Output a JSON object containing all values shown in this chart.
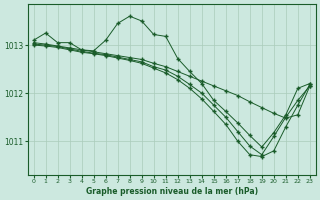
{
  "background_color": "#cce8df",
  "grid_color": "#aaccbb",
  "line_color": "#1a5c2a",
  "marker": "+",
  "xlabel": "Graphe pression niveau de la mer (hPa)",
  "xlim": [
    -0.5,
    23.5
  ],
  "ylim": [
    1010.3,
    1013.85
  ],
  "yticks": [
    1011,
    1012,
    1013
  ],
  "xticks": [
    0,
    1,
    2,
    3,
    4,
    5,
    6,
    7,
    8,
    9,
    10,
    11,
    12,
    13,
    14,
    15,
    16,
    17,
    18,
    19,
    20,
    21,
    22,
    23
  ],
  "lines": [
    {
      "x": [
        0,
        1,
        2,
        3,
        4,
        5,
        6,
        7,
        8,
        9,
        10,
        11,
        12,
        13,
        14,
        15,
        16,
        17,
        18,
        19,
        20,
        21,
        22,
        23
      ],
      "y": [
        1013.1,
        1013.25,
        1013.05,
        1013.05,
        1012.9,
        1012.88,
        1013.1,
        1013.45,
        1013.6,
        1013.5,
        1013.22,
        1013.18,
        1012.72,
        1012.45,
        1012.2,
        1011.85,
        1011.62,
        1011.38,
        1011.12,
        1010.88,
        1011.18,
        1011.55,
        1012.1,
        1012.2
      ]
    },
    {
      "x": [
        0,
        1,
        2,
        3,
        4,
        5,
        6,
        7,
        8,
        9,
        10,
        11,
        12,
        13,
        14,
        15,
        16,
        17,
        18,
        19,
        20,
        21,
        22,
        23
      ],
      "y": [
        1013.05,
        1013.02,
        1012.98,
        1012.94,
        1012.9,
        1012.86,
        1012.82,
        1012.78,
        1012.74,
        1012.7,
        1012.62,
        1012.55,
        1012.45,
        1012.35,
        1012.25,
        1012.15,
        1012.05,
        1011.95,
        1011.82,
        1011.7,
        1011.58,
        1011.48,
        1011.55,
        1012.15
      ]
    },
    {
      "x": [
        0,
        1,
        2,
        3,
        4,
        5,
        6,
        7,
        8,
        9,
        10,
        11,
        12,
        13,
        14,
        15,
        16,
        17,
        18,
        19,
        20,
        21,
        22,
        23
      ],
      "y": [
        1013.02,
        1013.0,
        1012.97,
        1012.92,
        1012.87,
        1012.83,
        1012.8,
        1012.75,
        1012.7,
        1012.65,
        1012.55,
        1012.48,
        1012.35,
        1012.18,
        1012.0,
        1011.75,
        1011.5,
        1011.2,
        1010.9,
        1010.72,
        1011.1,
        1011.5,
        1011.85,
        1012.15
      ]
    },
    {
      "x": [
        0,
        1,
        2,
        3,
        4,
        5,
        6,
        7,
        8,
        9,
        10,
        11,
        12,
        13,
        14,
        15,
        16,
        17,
        18,
        19,
        20,
        21,
        22,
        23
      ],
      "y": [
        1013.0,
        1012.98,
        1012.95,
        1012.9,
        1012.85,
        1012.82,
        1012.78,
        1012.73,
        1012.68,
        1012.62,
        1012.52,
        1012.42,
        1012.28,
        1012.1,
        1011.88,
        1011.62,
        1011.35,
        1011.0,
        1010.72,
        1010.68,
        1010.8,
        1011.3,
        1011.75,
        1012.18
      ]
    }
  ]
}
